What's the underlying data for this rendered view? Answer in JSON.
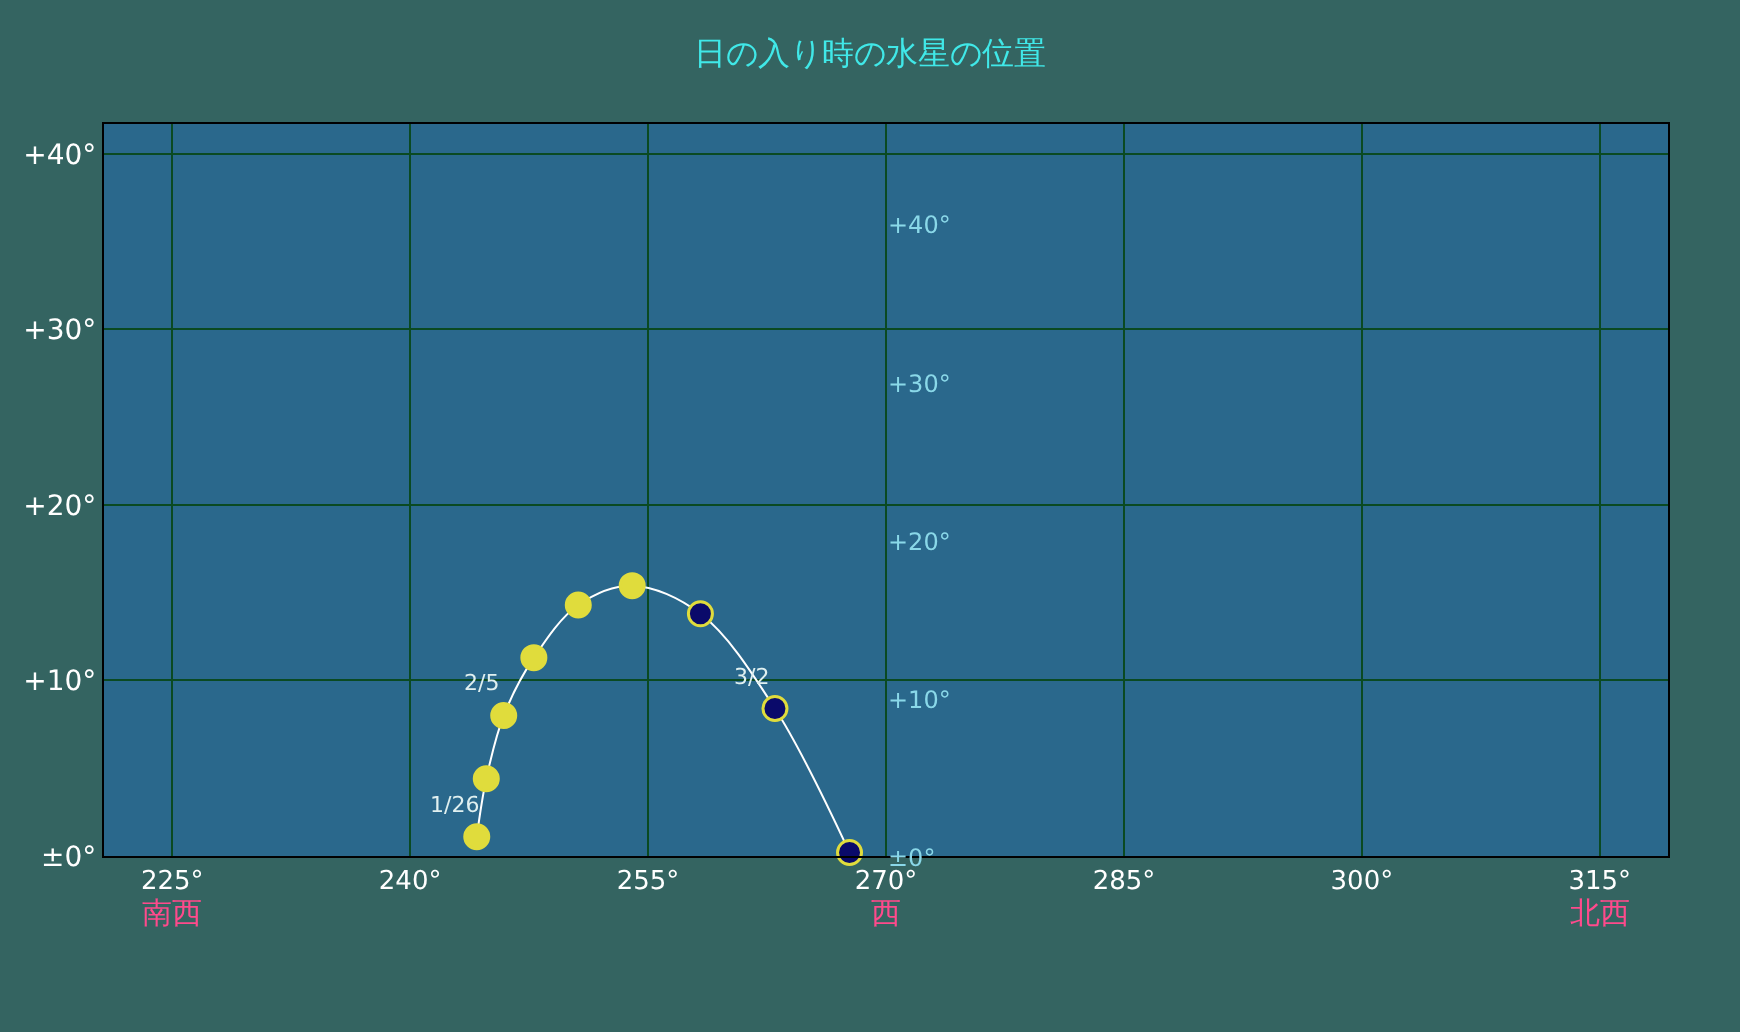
{
  "chart_data": {
    "type": "line",
    "title": "日の入り時の水星の位置",
    "x": [
      244.2,
      244.8,
      245.9,
      247.8,
      250.6,
      254.0,
      258.3,
      263.0,
      267.7
    ],
    "series": [
      {
        "color": "#ffffff",
        "colors": [
          "#e0dc3c",
          "#e0dc3c",
          "#e0dc3c",
          "#e0dc3c",
          "#e0dc3c",
          "#e0dc3c",
          "#0a0a6a",
          "#0a0a6a",
          "#0a0a6a"
        ],
        "values": [
          1.1,
          4.4,
          8.0,
          11.3,
          14.3,
          15.4,
          13.8,
          8.4,
          0.2
        ]
      }
    ],
    "marker": "circle",
    "line_style": "solid",
    "xlim": [
      220.7,
      319.3
    ],
    "xticks": [
      {
        "value": 225,
        "label": "225°\n南西"
      },
      {
        "value": 240,
        "label": "240°"
      },
      {
        "value": 255,
        "label": "255°"
      },
      {
        "value": 270,
        "label": "270°\n西"
      },
      {
        "value": 285,
        "label": "285°"
      },
      {
        "value": 300,
        "label": "300°"
      },
      {
        "value": 315,
        "label": "315°\n北西"
      }
    ],
    "ylim": [
      0,
      41.7
    ],
    "yticks": [
      {
        "value": 0,
        "label": "±0°"
      },
      {
        "value": 10,
        "label": "+10°"
      },
      {
        "value": 20,
        "label": "+20°"
      },
      {
        "value": 30,
        "label": "+30°"
      },
      {
        "value": 40,
        "label": "+40°"
      }
    ],
    "y2lim": [
      -0.25,
      46.0
    ],
    "y2ticks": [
      {
        "value": 0,
        "label": "±0°"
      },
      {
        "value": 10,
        "label": "+10°"
      },
      {
        "value": 20,
        "label": "+20°"
      },
      {
        "value": 30,
        "label": "+30°"
      },
      {
        "value": 40,
        "label": "+40°"
      }
    ],
    "annotations": [
      {
        "text": "1/26",
        "x": 244.2,
        "y": 1.1
      },
      {
        "text": "2/5",
        "x": 245.9,
        "y": 8.0
      },
      {
        "text": "3/2",
        "x": 263.0,
        "y": 8.4
      }
    ],
    "grid": true
  }
}
